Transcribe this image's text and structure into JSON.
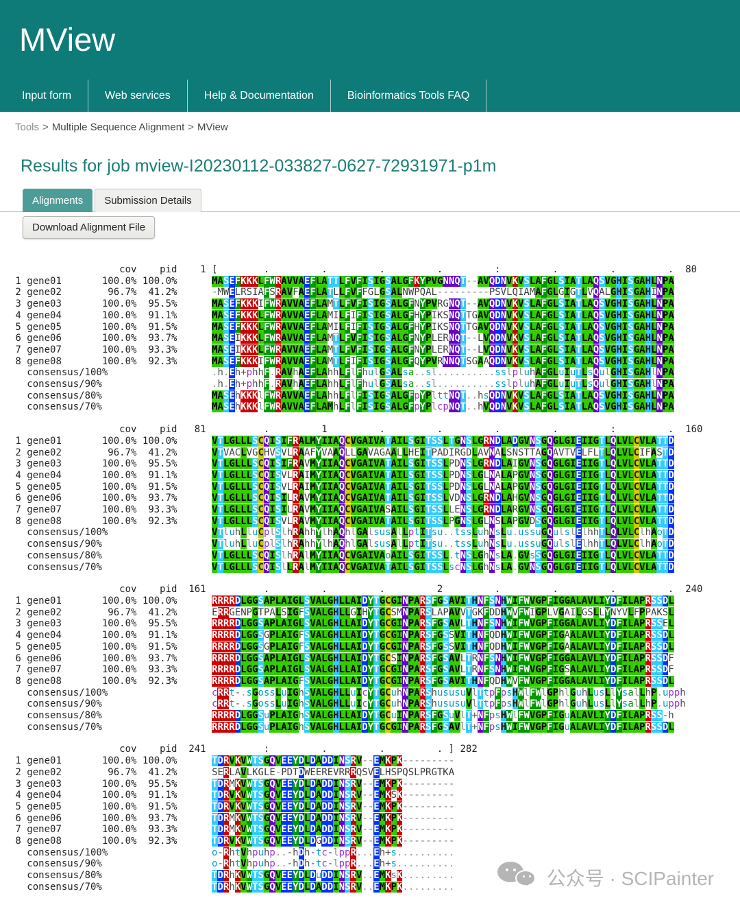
{
  "header": {
    "app_title": "MView",
    "nav": [
      "Input form",
      "Web services",
      "Help & Documentation",
      "Bioinformatics Tools FAQ"
    ]
  },
  "breadcrumb": {
    "parts": [
      "Tools",
      "Multiple Sequence Alignment",
      "MView"
    ],
    "separator": ">"
  },
  "page": {
    "title": "Results for job mview-I20230112-033827-0627-72931971-p1m"
  },
  "tabs": [
    {
      "label": "Alignments",
      "active": true
    },
    {
      "label": "Submission Details",
      "active": false
    }
  ],
  "download_button": "Download Alignment File",
  "watermark": {
    "icon": "wechat-icon",
    "text": "公众号 · SCIPainter"
  },
  "colors": {
    "header_teal": "#0e7b78",
    "title_teal": "#1b7e76",
    "active_tab": "#4e9c97",
    "watermark_gray": "#b5b5b5"
  },
  "alignment": {
    "col_headers": {
      "cov": "cov",
      "pid": "pid"
    },
    "genes": [
      {
        "num": "1",
        "name": "gene01",
        "cov": "100.0%",
        "pid": "100.0%"
      },
      {
        "num": "2",
        "name": "gene02",
        "cov": "96.7%",
        "pid": "41.2%"
      },
      {
        "num": "3",
        "name": "gene03",
        "cov": "100.0%",
        "pid": "95.5%"
      },
      {
        "num": "4",
        "name": "gene04",
        "cov": "100.0%",
        "pid": "91.1%"
      },
      {
        "num": "5",
        "name": "gene05",
        "cov": "100.0%",
        "pid": "91.5%"
      },
      {
        "num": "6",
        "name": "gene06",
        "cov": "100.0%",
        "pid": "93.7%"
      },
      {
        "num": "7",
        "name": "gene07",
        "cov": "100.0%",
        "pid": "93.3%"
      },
      {
        "num": "8",
        "name": "gene08",
        "cov": "100.0%",
        "pid": "92.3%"
      }
    ],
    "consensus_labels": [
      "consensus/100%",
      "consensus/90%",
      "consensus/80%",
      "consensus/70%"
    ],
    "palette": {
      "residues": {
        "A": [
          "#33cc00",
          "#000000"
        ],
        "G": [
          "#33cc00",
          "#000000"
        ],
        "I": [
          "#33cc00",
          "#000000"
        ],
        "L": [
          "#33cc00",
          "#000000"
        ],
        "M": [
          "#33cc00",
          "#000000"
        ],
        "P": [
          "#33cc00",
          "#000000"
        ],
        "V": [
          "#33cc00",
          "#000000"
        ],
        "F": [
          "#009900",
          "#ffffff"
        ],
        "W": [
          "#009900",
          "#ffffff"
        ],
        "Y": [
          "#009900",
          "#ffffff"
        ],
        "S": [
          "#33ccff",
          "#ffffff"
        ],
        "T": [
          "#33ccff",
          "#ffffff"
        ],
        "H": [
          "#33ccff",
          "#1a1a1a"
        ],
        "C": [
          "#cccc00",
          "#1a1a1a"
        ],
        "K": [
          "#cc0000",
          "#ffffff"
        ],
        "R": [
          "#cc0000",
          "#ffffff"
        ],
        "D": [
          "#0033ff",
          "#ffffff"
        ],
        "E": [
          "#0033ff",
          "#ffffff"
        ],
        "N": [
          "#6600cc",
          "#ffffff"
        ],
        "Q": [
          "#6600cc",
          "#ffffff"
        ]
      },
      "classes": {
        "h": "#4d4d4d",
        "l": "#8a8a8a",
        "s": "#00a0c8",
        "u": "#00a0c8",
        "o": "#00a0c8",
        "t": "#00a0c8",
        "p": "#9933cc",
        "c": "#9933cc",
        "a": "#009900",
        "+": "#555555",
        "-": "#555555",
        ".": "#999999"
      },
      "plain": "#3d3d3d",
      "gap": "#808080"
    },
    "blocks": [
      {
        "start": "1",
        "end_label": "  80",
        "ruler": "[        .         .         .         .         :         .         .         .",
        "sequences": [
          "MASEFKKKLFWRAVVAEFLATTLFVFISIGSALGFKYPVGNNQT--AVQDNVKVSLAFGLSIATLAQSVGHISGAHLNPA",
          "-MWELRSIAFSRAVFAEFLATLLFVFFGLGSALNWPQAL---------PSVLQIAMAFGLGIGTLVQALGHISGAHINPA",
          "MASEFKKKIFWRAVVAEFLAMTLFVFISIGSALGFNYPVRGNQT--AVQDNVKVSLAFGLSIATLAQSVGHISGAHLNPA",
          "MASEFKKKLFWRAVVAEFLAMILFIFISIGSALGFHYPIKSNQTTGAVQDNVKVSLAFGLSIATLAQSVGHISGAHLNPA",
          "MASEFKKKLFWRAVVAEFLAMILFIFISIGSALGFHYPIKSNQTTGAVQDNVKVSLAFGLSIATLAQSVGHISGAHLNPA",
          "MASEIKKKLFWRAVVAEFLAMTLFVFISIGSALGFNYPLERNQT--LVQDNVKVSLAFGLSIATLAQSVGHISGAHLNPA",
          "MASEIKKKLFWRAVVAEFLAMTLFVFISIGSALGFNYPLERNQT--LVQDNVKVSLAFGLSIATLAQSVGHISGAHLNPA",
          "MASEFKKKIFWRAVVAEFLAMTLFIFISIGSALGFQYPVRNNQTSGAAQDNVKVSLAFGLSIATLAQSVGHISGAHLNPA"
        ],
        "consensus": [
          ".h.Eh+phhF.RAVhAEFLAhhLFlFhulGSALsa..sl..........sslpluhAFGLuIuTLsQulGHISGAHlNPA",
          ".h.Eh+phhF.RAVhAEFLAhhLFlFhulGSALsa..sl..........sslpluhAFGLuIuTLsQulGHISGAHlNPA",
          "MASEhKKKlFWRAVVAEFLAhhLFlFISIGSALGFpYPlttNQT..hsQDNVKVSLAFGLSIATLAQSVGHISGAHLNPA",
          "MASEhKKKlFWRAVVAEFLAMhLFlFISIGSALGFpYPlcpNQT..hVQDNVKVSLAFGLSIATLAQSVGHISGAHLNPA"
        ]
      },
      {
        "start": "81",
        "end_label": "  160",
        "ruler": "         .         1         .         .         .         .         :         .",
        "sequences": [
          "VTLGLLLSCQISIFRALMYIIAQCVGAIVATAILSGITSSLTGNSLGRNDLADGVNSGQGLGIEIIGTLQLVLCVLATTD",
          "VTVACLVGCHVSVLRAAFYVAAQLLGAVAGAALLHEITPADIRGDLAVNALSNSTTAGQAVTVELFLTLQLVLCIFASTD",
          "VTLGLLLSCQISIFRAVMYIIAQCVGAIVATAILSGITSSLPDNSLGRNDLAIGVNSGQGLGIEIIGTLQLVLCVLATTD",
          "VTLGLLLSCQISVLRAIMYIIAQCVGAIVATAILSGITSSLPDNSLGLNALAPGVNSGQGLGIEIIGTLQLVLCVLATTD",
          "VTLGLLLSCQISVLRAIMYIIAQCVGAIVATAILSGITSSLPDNSLGLNALAPGVNSGQGLGIEIIGTLQLVLCVLATTD",
          "VTLGLLLSCQISILRAVMYIIAQCVGAIVATAILSGITSSLVDNSLGRNDLAHGVNSGQGLGIEIIGTLQLVLCVLATTD",
          "VTLGLLLSCQISILRAVMYIIAQCVGAIVASAILSGITSSLLENSLGRNDLARGVNSGQGLGIEIIGTLQLVLCVLATTD",
          "VTLGLLLSCQISVLRAVMYIIAQCVGAIVATAILSGITSSLPGNSLGLNSLAPGVDSGQGLGIEIIGTLQLVLCVLATTD"
        ],
        "consensus": [
          "VTluhLluCplSlhRAhhYlhAQhlGAlsusAlLptITsu..tssLuhNsLu.ussuGQulslElhhTLQLVLClhAoTD",
          "VTluhLluCplSlhRAhhYlhAQhlGAlsusAlLptITsu..tssLuhNsLu.ussuGQulslElhhTLQLVLClhAoTD",
          "VTLGLLLSCQISlhRAlMYIIAQCVGAIVAoAILSGITSSL.tNSLGhNsLA.GVsSGQGLGIEIIGTLQLVLCVLATTD",
          "VTLGLLLSCQISlLRAlMYIIAQCVGAIVATAILSGITSSLscNSLGhNsLA.GVNSGQGLGIEIIGTLQLVLCVLATTD"
        ]
      },
      {
        "start": "161",
        "end_label": "  240",
        "ruler": "         .         .         .         2         .         .         .         .",
        "sequences": [
          "RRRRDLGGSAPLAIGLSVALGHLLAIDYTGCGINPARSFGSAVITHNFSNHWIFWVGPFIGGALAVLIYDFILAPRSSDL",
          "ERRGENPGTPALSIGFSVALGHLLGIHYTGCSMNPARSLAPAVVTGKFDDHWVFWIGPLVGAILGSLLYNYVLFPPAKSL",
          "RRRRDLGGSAPLAIGLSVALGHLLAIDYTGCGINPARSFGSAVLTHNFSNHWIFWVGPFIGGALAVLIYDFILAPRSSEL",
          "RRRRDLGGSGPLAIGFSVALGHLLAIDYTGCGINPARSFGSSVITHNFQDHWIFWVGPFIGAALAVLIYDFILAPRSSDL",
          "RRRRDLGGSGPLAIGFSVALGHLLAIDYTGCGINPARSFGSSVITHNFQDHWIFWVGPFIGAALAVLIYDFILAPRSSDL",
          "RRRRDLGGSAPLAIGLSVALGHLLAIDYTGCSINPARSFGSAVLTRNFSNHWIFWVGPFIGGALAVLIYDFILAPRSSDF",
          "RRRRDLGGSAPLAIGLSVALGHLLAIDYTGCGINPARSFGSAVLTRNFSNHWIFWVGPFIGSALAVLIYDFILAPRSSDF",
          "RRRRDLGGSAPLAIGFSVALGHLLAIDYTGCGINPARSFGSAVITHNFQDHWVFWVGPFIGGALAVLIYDFILAPRSSDL"
        ],
        "consensus": [
          "cRRt-.sGossLuIGhSVALGHLLuIcYTGCuhNPARShususuVlTtpFpsHWlFWlGPhlGuhLusLlYsalLhP.upph",
          "cRRt-.sGossLuIGhSVALGHLLuIcYTGCuhNPARShususuVlTtpFpsHWlFWlGPhlGuhLusLlYsalLhP.upph",
          "RRRRDLGGSuPLAIGhSVALGHLLAIDYTGCuINPARSFGSuVlT+NFpsHWlFWVGPFIGuALAVLIYDFILAPRSS-h",
          "RRRRDLGGSuPLAIGhSVALGHLLAIDYTGCGINPARSFGSAVlT+NFpsHWIFWVGPFIGuALAVLIYDFILAPRSSDL"
        ]
      },
      {
        "start": "241",
        "end_label": " 282",
        "ruler": "         :         .         .         . ]",
        "sequences": [
          "TDRVKVWTSGQVEEYDLDADDINSRV--EMKPK---------",
          "SERLAVLKGLE-PDTDWEEREVRRRQSVELHSPQSLPRGTKA",
          "TDRMKVWTSGQVEEYDLDADDINSRV--EMKPK---------",
          "TDRVKVWTSGQVEEYDLDADDINSRV--EMKSK---------",
          "TDRVKVWTSGQVEEYDLDADDINSRV--EMKPK---------",
          "TDRMKVWTSGQVEEYDLDADDINSRV--EMKPK---------",
          "TDRMKVWTSGQVEEYDLDADDINSRV--EMKPK---------",
          "TDRVKVWTSGQVEEYDLDGDDINSRV--EMKPK---------"
        ],
        "consensus": [
          "o-RhtVhpuhp..-hDh-tc-lppR...Eh+s..........",
          "o-RhtVhpuhp..-hDh-tc-lppR...Eh+s..........",
          "TDRhKVWTSGQVEEYDLDuDDINSRV..EMKsK.........",
          "TDRhKVWTSGQVEEYDLDADDINSRV..EMKPK........."
        ]
      }
    ]
  }
}
